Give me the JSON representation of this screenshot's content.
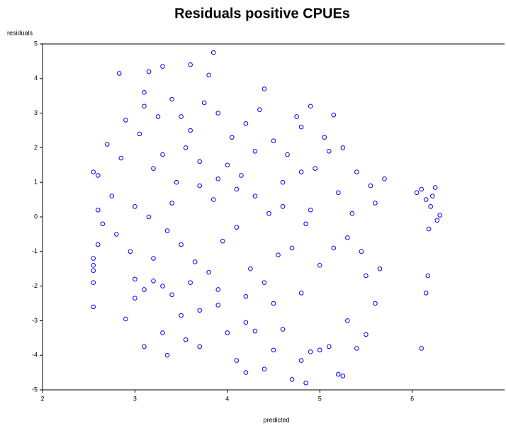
{
  "chart_data": {
    "type": "scatter",
    "title": "Residuals positive CPUEs",
    "x_label": "predicted",
    "y_label": "residuals",
    "color": "#0000ff",
    "xlim": [
      2,
      7
    ],
    "ylim": [
      -5,
      5
    ],
    "xticks": [
      2,
      3,
      4,
      5,
      6
    ],
    "yticks": [
      -5,
      -4,
      -3,
      -2,
      -1,
      0,
      1,
      2,
      3,
      4,
      5
    ],
    "grid": false,
    "x": [
      2.6,
      2.7,
      2.8,
      2.9,
      3.0,
      3.1,
      3.2,
      3.3,
      3.4,
      3.5,
      3.6,
      3.7,
      3.8,
      3.9,
      4.0,
      4.1,
      4.2,
      4.3,
      4.4,
      4.5,
      4.6,
      4.7,
      4.8,
      4.9,
      5.0,
      5.1,
      5.2,
      5.3,
      5.4,
      5.5,
      5.6,
      5.7,
      2.65,
      2.75,
      2.85,
      2.95,
      3.05,
      3.15,
      3.25,
      3.35,
      3.45,
      3.55,
      3.65,
      3.75,
      3.85,
      3.95,
      4.05,
      4.15,
      4.25,
      4.35,
      4.45,
      4.55,
      4.65,
      4.75,
      4.85,
      4.95,
      5.05,
      5.15,
      5.25,
      5.35,
      5.45,
      5.55,
      5.65,
      3.0,
      3.3,
      3.6,
      3.9,
      4.2,
      4.5,
      4.8,
      3.2,
      3.4,
      3.7,
      3.9,
      4.1,
      4.3,
      4.6,
      4.8,
      3.5,
      3.1,
      3.85,
      3.6,
      3.3,
      2.83,
      3.15,
      3.8,
      4.4,
      4.9,
      5.15,
      2.55,
      2.55,
      2.9,
      3.3,
      3.7,
      4.1,
      4.4,
      2.55,
      3.0,
      3.5,
      4.0,
      4.5,
      4.8,
      2.55,
      3.1,
      3.7,
      4.3,
      4.9,
      2.55,
      3.2,
      3.9,
      4.6,
      5.1,
      2.55,
      3.4,
      4.2,
      5.0,
      4.85,
      4.7,
      4.2,
      5.2,
      5.25,
      3.1,
      3.35,
      3.55,
      5.4,
      5.5,
      5.3,
      5.6,
      2.6,
      2.6,
      6.1,
      6.15,
      6.2,
      6.25,
      6.3,
      6.18,
      6.1,
      6.15,
      6.17,
      6.05,
      6.27,
      6.22
    ],
    "values": [
      1.2,
      2.1,
      -0.5,
      2.8,
      0.3,
      3.2,
      -1.2,
      1.8,
      3.4,
      -0.8,
      2.5,
      0.9,
      -1.6,
      3.0,
      1.5,
      -0.3,
      2.7,
      0.6,
      -1.9,
      2.2,
      1.0,
      -0.9,
      2.6,
      0.2,
      -1.4,
      1.9,
      0.7,
      -0.6,
      1.3,
      -1.7,
      0.4,
      1.1,
      -0.2,
      0.6,
      1.7,
      -1.0,
      2.4,
      0.0,
      2.9,
      -0.4,
      1.0,
      2.0,
      -1.3,
      3.3,
      0.5,
      -0.7,
      2.3,
      1.2,
      -1.5,
      3.1,
      0.1,
      -1.1,
      1.8,
      2.9,
      -0.2,
      1.4,
      2.3,
      -0.9,
      2.0,
      0.1,
      -1.0,
      0.9,
      -1.5,
      -1.8,
      -2.0,
      -1.9,
      -2.1,
      -2.3,
      -2.5,
      -2.2,
      1.4,
      0.4,
      1.6,
      1.1,
      0.8,
      1.9,
      0.3,
      1.3,
      2.9,
      3.6,
      4.75,
      4.4,
      4.35,
      4.15,
      4.2,
      4.1,
      3.7,
      3.2,
      2.95,
      1.3,
      -2.6,
      -2.95,
      -3.35,
      -3.75,
      -4.15,
      -4.4,
      -1.9,
      -2.35,
      -2.85,
      -3.35,
      -3.85,
      -4.15,
      -1.55,
      -2.1,
      -2.7,
      -3.3,
      -3.9,
      -1.2,
      -1.85,
      -2.55,
      -3.25,
      -3.75,
      -1.4,
      -2.25,
      -3.05,
      -3.85,
      -4.8,
      -4.7,
      -4.5,
      -4.55,
      -4.6,
      -3.75,
      -4.0,
      -3.55,
      -3.8,
      -3.4,
      -3.0,
      -2.5,
      -0.8,
      0.2,
      0.8,
      0.5,
      0.3,
      0.85,
      0.05,
      -0.35,
      -3.8,
      -2.2,
      -1.7,
      0.7,
      -0.1,
      0.6
    ]
  }
}
